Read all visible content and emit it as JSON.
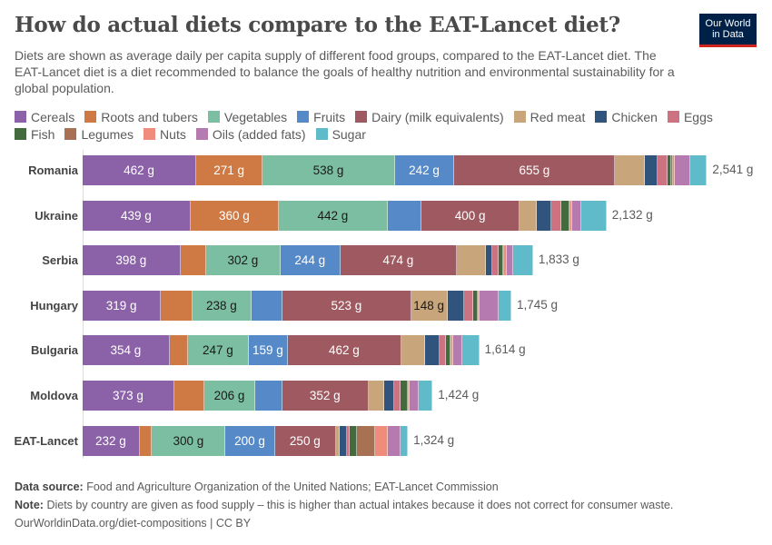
{
  "title": "How do actual diets compare to the EAT-Lancet diet?",
  "subtitle": "Diets are shown as average daily per capita supply of different food groups, compared to the EAT-Lancet diet. The EAT-Lancet diet is a diet recommended to balance the goals of healthy nutrition and environmental sustainability for a global population.",
  "logo": {
    "line1": "Our World",
    "line2": "in Data"
  },
  "footer": {
    "source_label": "Data source:",
    "source_text": "Food and Agriculture Organization of the United Nations; EAT-Lancet Commission",
    "note_label": "Note:",
    "note_text": "Diets by country are given as food supply – this is higher than actual intakes because it does not correct for consumer waste.",
    "credit": "OurWorldinData.org/diet-compositions | CC BY"
  },
  "chart_data": {
    "type": "bar",
    "orientation": "horizontal",
    "stacked": true,
    "unit": "g",
    "legend_position": "top",
    "categories": [
      "Romania",
      "Ukraine",
      "Serbia",
      "Hungary",
      "Bulgaria",
      "Moldova",
      "EAT-Lancet"
    ],
    "totals": [
      "2,541 g",
      "2,132 g",
      "1,833 g",
      "1,745 g",
      "1,614 g",
      "1,424 g",
      "1,324 g"
    ],
    "series": [
      {
        "name": "Cereals",
        "color": "#8b62a8",
        "label_color": "#ffffff",
        "values": [
          462,
          439,
          398,
          319,
          354,
          373,
          232
        ]
      },
      {
        "name": "Roots and tubers",
        "color": "#cf7a45",
        "label_color": "#ffffff",
        "values": [
          271,
          360,
          105,
          129,
          75,
          123,
          50
        ]
      },
      {
        "name": "Vegetables",
        "color": "#7bbea2",
        "label_color": "#1a1a1a",
        "values": [
          538,
          442,
          302,
          238,
          247,
          206,
          300
        ]
      },
      {
        "name": "Fruits",
        "color": "#5589c8",
        "label_color": "#ffffff",
        "values": [
          242,
          138,
          244,
          128,
          159,
          110,
          200
        ]
      },
      {
        "name": "Dairy (milk equivalents)",
        "color": "#9f5a61",
        "label_color": "#ffffff",
        "values": [
          655,
          400,
          474,
          523,
          462,
          352,
          250
        ]
      },
      {
        "name": "Red meat",
        "color": "#c8a57a",
        "label_color": "#1a1a1a",
        "values": [
          121,
          68,
          117,
          148,
          97,
          63,
          14
        ]
      },
      {
        "name": "Chicken",
        "color": "#30547b",
        "label_color": "#ffffff",
        "values": [
          52,
          62,
          28,
          69,
          59,
          41,
          29
        ]
      },
      {
        "name": "Eggs",
        "color": "#cc7281",
        "label_color": "#ffffff",
        "values": [
          41,
          41,
          27,
          37,
          26,
          25,
          13
        ]
      },
      {
        "name": "Fish",
        "color": "#436b3d",
        "label_color": "#ffffff",
        "values": [
          15,
          30,
          16,
          16,
          17,
          32,
          28
        ]
      },
      {
        "name": "Legumes",
        "color": "#a97153",
        "label_color": "#ffffff",
        "values": [
          6,
          5,
          5,
          5,
          5,
          3,
          75
        ]
      },
      {
        "name": "Nuts",
        "color": "#ef8c7b",
        "label_color": "#ffffff",
        "values": [
          7,
          6,
          9,
          5,
          6,
          3,
          50
        ]
      },
      {
        "name": "Oils (added fats)",
        "color": "#b57ab0",
        "label_color": "#ffffff",
        "values": [
          62,
          38,
          28,
          76,
          37,
          38,
          53
        ]
      },
      {
        "name": "Sugar",
        "color": "#5fbac9",
        "label_color": "#ffffff",
        "values": [
          69,
          103,
          80,
          52,
          70,
          55,
          30
        ]
      }
    ]
  }
}
